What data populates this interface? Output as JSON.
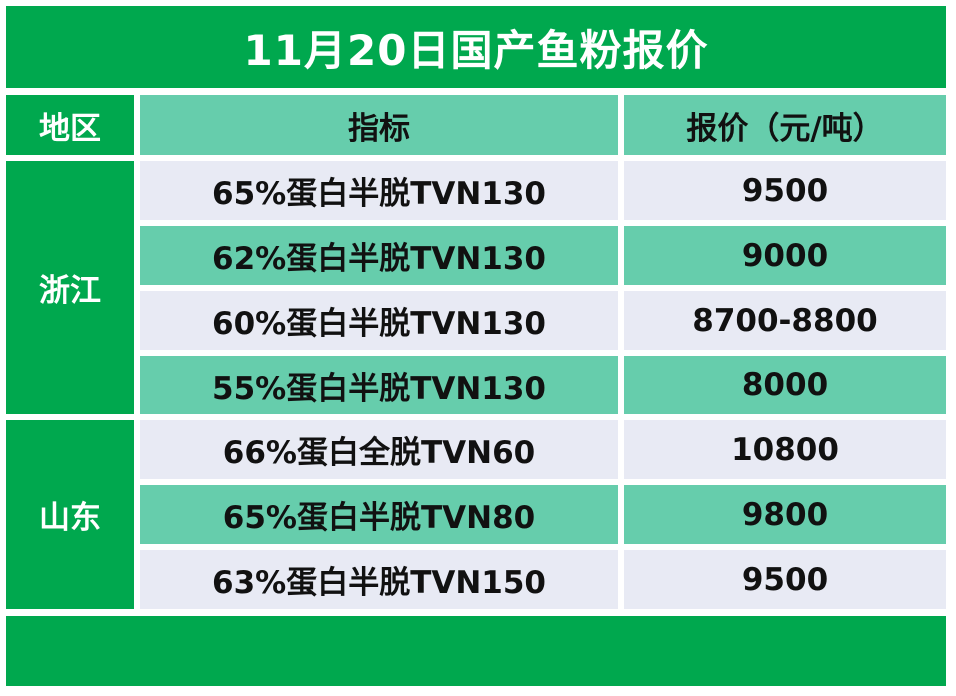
{
  "title": "11月20日国产鱼粉报价",
  "header": {
    "region": "地区",
    "indicator": "指标",
    "price": "报价（元/吨）"
  },
  "regions": [
    {
      "name": "浙江",
      "rows": [
        {
          "indicator": "65%蛋白半脱TVN130",
          "price": "9500"
        },
        {
          "indicator": "62%蛋白半脱TVN130",
          "price": "9000"
        },
        {
          "indicator": "60%蛋白半脱TVN130",
          "price": "8700-8800"
        },
        {
          "indicator": "55%蛋白半脱TVN130",
          "price": "8000"
        }
      ]
    },
    {
      "name": "山东",
      "rows": [
        {
          "indicator": "66%蛋白全脱TVN60",
          "price": "10800"
        },
        {
          "indicator": "65%蛋白半脱TVN80",
          "price": "9800"
        },
        {
          "indicator": "63%蛋白半脱TVN150",
          "price": "9500"
        }
      ]
    }
  ],
  "colors": {
    "brand_green": "#00a84e",
    "row_teal": "#66cdac",
    "row_light": "#e8eaf4"
  }
}
